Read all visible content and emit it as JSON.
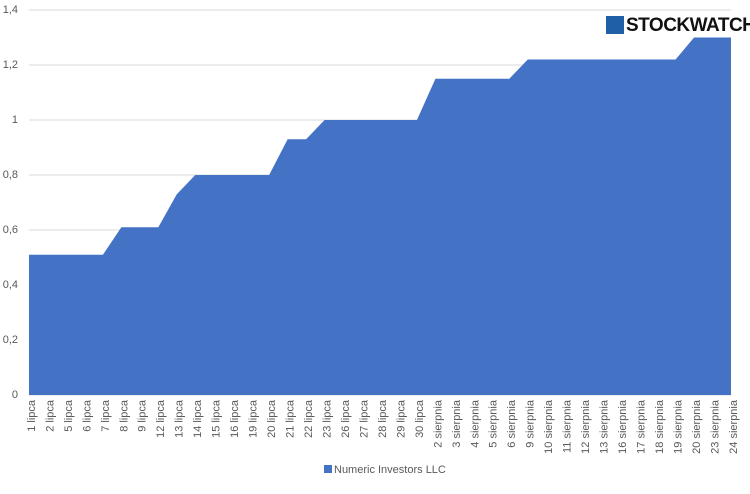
{
  "chart_data": {
    "type": "area",
    "logo": "STOCKWATCH",
    "categories": [
      "1 lipca",
      "2 lipca",
      "5 lipca",
      "6 lipca",
      "7 lipca",
      "8 lipca",
      "9 lipca",
      "12 lipca",
      "13 lipca",
      "14 lipca",
      "15 lipca",
      "16 lipca",
      "19 lipca",
      "20 lipca",
      "21 lipca",
      "22 lipca",
      "23 lipca",
      "26 lipca",
      "27 lipca",
      "28 lipca",
      "29 lipca",
      "30 lipca",
      "2 sierpnia",
      "3 sierpnia",
      "4 sierpnia",
      "5 sierpnia",
      "6 sierpnia",
      "9 sierpnia",
      "10 sierpnia",
      "11 sierpnia",
      "12 sierpnia",
      "13 sierpnia",
      "16 sierpnia",
      "17 sierpnia",
      "18 sierpnia",
      "19 sierpnia",
      "20 sierpnia",
      "23 sierpnia",
      "24 sierpnia"
    ],
    "series": [
      {
        "name": "Numeric Investors LLC",
        "color": "#4472c4",
        "values": [
          0.51,
          0.51,
          0.51,
          0.51,
          0.51,
          0.61,
          0.61,
          0.61,
          0.73,
          0.8,
          0.8,
          0.8,
          0.8,
          0.8,
          0.93,
          0.93,
          1.0,
          1.0,
          1.0,
          1.0,
          1.0,
          1.0,
          1.15,
          1.15,
          1.15,
          1.15,
          1.15,
          1.22,
          1.22,
          1.22,
          1.22,
          1.22,
          1.22,
          1.22,
          1.22,
          1.22,
          1.3,
          1.3,
          1.3
        ]
      }
    ],
    "ylim": [
      0,
      1.4
    ],
    "yticks": [
      0,
      {
        "value": 0.2,
        "label": "0,2"
      },
      {
        "value": 0.4,
        "label": "0,4"
      },
      {
        "value": 0.6,
        "label": "0,6"
      },
      {
        "value": 0.8,
        "label": "0,8"
      },
      1,
      {
        "value": 1.2,
        "label": "1,2"
      },
      {
        "value": 1.4,
        "label": "1,4"
      }
    ],
    "grid": true,
    "legend": "bottom"
  }
}
